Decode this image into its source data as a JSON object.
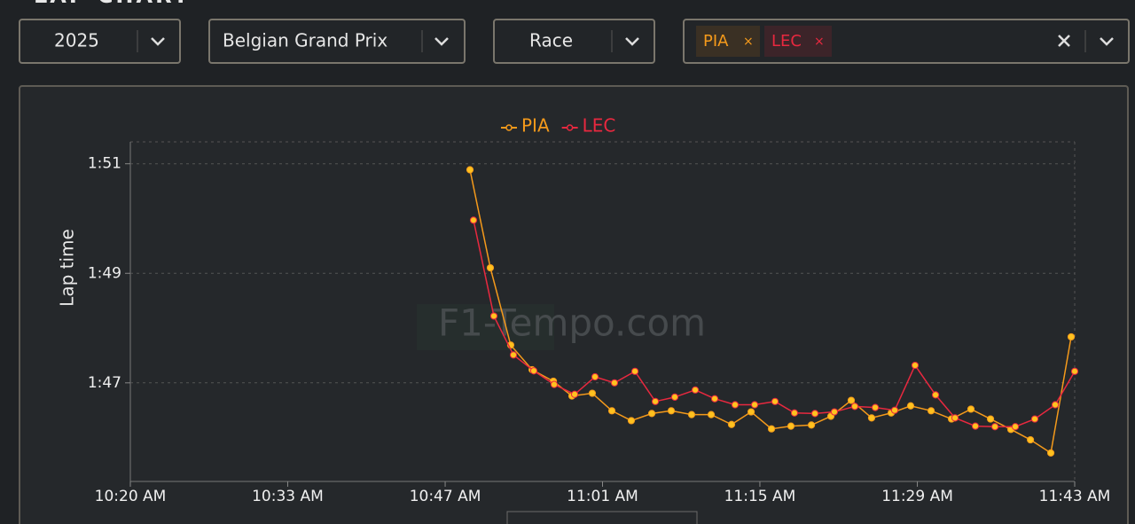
{
  "header": {
    "title": "LAP CHART"
  },
  "controls": {
    "year": "2025",
    "event": "Belgian Grand Prix",
    "session": "Race",
    "drivers": [
      "PIA",
      "LEC"
    ]
  },
  "watermark": "F1-Tempo.com",
  "chart_data": {
    "type": "line",
    "ylabel": "Lap time",
    "xlim": [
      620,
      703
    ],
    "xticks": [
      {
        "value": 620,
        "label": "10:20 AM"
      },
      {
        "value": 633.83,
        "label": "10:33 AM"
      },
      {
        "value": 647.67,
        "label": "10:47 AM"
      },
      {
        "value": 661.5,
        "label": "11:01 AM"
      },
      {
        "value": 675.33,
        "label": "11:15 AM"
      },
      {
        "value": 689.17,
        "label": "11:29 AM"
      },
      {
        "value": 703,
        "label": "11:43 AM"
      }
    ],
    "ylim": [
      105.2,
      111.4
    ],
    "yticks": [
      {
        "value": 111,
        "label": "1:51"
      },
      {
        "value": 109,
        "label": "1:49"
      },
      {
        "value": 107,
        "label": "1:47"
      }
    ],
    "grid": true,
    "legend": "top",
    "series": [
      {
        "name": "PIA",
        "color": "#f59a1b",
        "x": [
          649.85,
          651.64,
          653.43,
          655.31,
          657.18,
          658.81,
          660.6,
          662.32,
          664.03,
          665.83,
          667.54,
          669.33,
          671.05,
          672.84,
          674.56,
          676.35,
          678.06,
          679.86,
          681.57,
          683.36,
          685.15,
          686.87,
          688.58,
          690.38,
          692.17,
          693.88,
          695.6,
          697.39,
          699.11,
          700.9,
          702.69
        ],
        "values": [
          110.89,
          109.1,
          107.69,
          107.24,
          107.03,
          106.76,
          106.81,
          106.49,
          106.31,
          106.44,
          106.49,
          106.42,
          106.42,
          106.24,
          106.47,
          106.16,
          106.21,
          106.23,
          106.39,
          106.68,
          106.36,
          106.45,
          106.58,
          106.49,
          106.34,
          106.52,
          106.34,
          106.15,
          105.96,
          105.72,
          107.84
        ]
      },
      {
        "name": "LEC",
        "color": "#e8283f",
        "x": [
          650.16,
          651.95,
          653.67,
          655.46,
          657.25,
          659.05,
          660.84,
          662.55,
          664.35,
          666.14,
          667.85,
          669.65,
          671.36,
          673.15,
          674.87,
          676.66,
          678.37,
          680.17,
          681.88,
          683.67,
          685.47,
          687.18,
          688.97,
          690.77,
          692.48,
          694.27,
          695.99,
          697.78,
          699.49,
          701.29,
          703.0
        ],
        "values": [
          109.97,
          108.22,
          107.51,
          107.22,
          106.97,
          106.79,
          107.11,
          107.0,
          107.21,
          106.66,
          106.74,
          106.87,
          106.71,
          106.6,
          106.6,
          106.66,
          106.45,
          106.44,
          106.47,
          106.57,
          106.55,
          106.5,
          107.32,
          106.78,
          106.36,
          106.21,
          106.2,
          106.2,
          106.34,
          106.6,
          107.21
        ]
      }
    ]
  }
}
